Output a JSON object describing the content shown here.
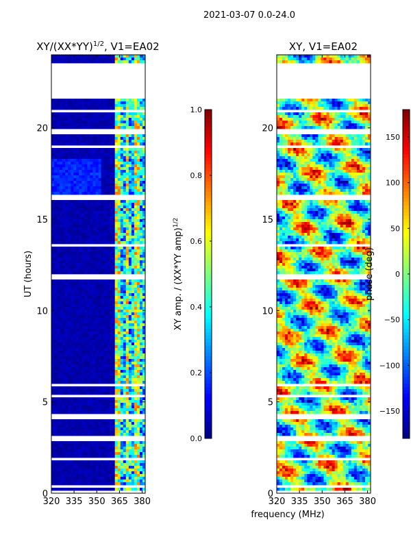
{
  "suptitle": "2021-03-07 0.0-24.0",
  "colormap": [
    "#00007f",
    "#0000ff",
    "#007fff",
    "#00ffff",
    "#7fff7f",
    "#ffff00",
    "#ff7f00",
    "#ff0000",
    "#7f0000"
  ],
  "chart_data": [
    {
      "type": "heatmap",
      "title_main": "XY/(XX*YY)",
      "title_sup": "1/2",
      "title_tail": ", V1=EA02",
      "xlabel": "",
      "ylabel": "UT (hours)",
      "xlim": [
        320,
        382
      ],
      "ylim": [
        0,
        24
      ],
      "xticks": [
        320,
        335,
        350,
        365,
        380
      ],
      "yticks": [
        0,
        5,
        10,
        15,
        20
      ],
      "quantity": "normalized XY amplitude",
      "colorbar": {
        "label_main": "XY amp. / (XX*YY amp)",
        "label_sup": "1/2",
        "range": [
          0.0,
          1.0
        ],
        "ticks": [
          "0.0",
          "0.2",
          "0.4",
          "0.6",
          "0.8",
          "1.0"
        ],
        "tick_values": [
          0.0,
          0.2,
          0.4,
          0.6,
          0.8,
          1.0
        ]
      },
      "gaps_hours": [
        [
          21.6,
          23.55
        ],
        [
          20.85,
          21.0
        ],
        [
          19.7,
          19.95
        ],
        [
          18.9,
          19.05
        ],
        [
          16.05,
          16.3
        ],
        [
          13.5,
          13.6
        ],
        [
          11.65,
          11.95
        ],
        [
          5.8,
          6.0
        ],
        [
          5.2,
          5.35
        ],
        [
          4.1,
          4.3
        ],
        [
          2.9,
          3.15
        ],
        [
          1.8,
          1.9
        ],
        [
          0.3,
          0.45
        ],
        [
          0.0,
          0.1
        ]
      ]
    },
    {
      "type": "heatmap",
      "title_main": "XY, V1=EA02",
      "xlabel": "frequency (MHz)",
      "ylabel": "",
      "xlim": [
        320,
        382
      ],
      "ylim": [
        0,
        24
      ],
      "xticks": [
        320,
        335,
        350,
        365,
        380
      ],
      "yticks": [
        0,
        5,
        10,
        15,
        20
      ],
      "quantity": "XY phase",
      "colorbar": {
        "label_main": "phase (deg)",
        "range": [
          -180,
          180
        ],
        "ticks": [
          "−150",
          "−100",
          "−50",
          "0",
          "50",
          "100",
          "150"
        ],
        "tick_values": [
          -150,
          -100,
          -50,
          0,
          50,
          100,
          150
        ]
      },
      "gaps_hours": [
        [
          21.6,
          23.55
        ],
        [
          20.85,
          21.0
        ],
        [
          19.7,
          19.95
        ],
        [
          18.9,
          19.05
        ],
        [
          16.05,
          16.3
        ],
        [
          13.5,
          13.6
        ],
        [
          11.65,
          11.95
        ],
        [
          5.8,
          6.0
        ],
        [
          5.2,
          5.35
        ],
        [
          4.1,
          4.3
        ],
        [
          2.9,
          3.15
        ],
        [
          1.8,
          1.9
        ],
        [
          0.3,
          0.45
        ],
        [
          0.0,
          0.1
        ]
      ]
    }
  ]
}
